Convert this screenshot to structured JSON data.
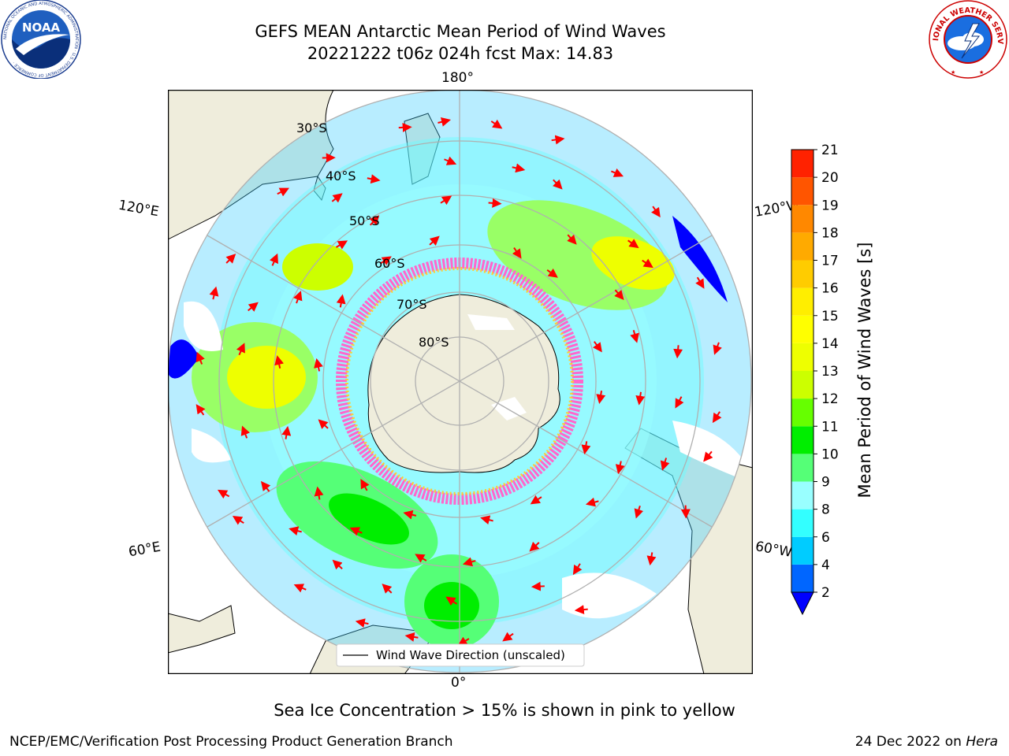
{
  "header": {
    "title_line1": "GEFS MEAN Antarctic Mean Period of Wind Waves",
    "title_line2": "20221222 t06z 024h fcst   Max: 14.83"
  },
  "logos": {
    "noaa": {
      "text": "NOAA",
      "ring_text": "NATIONAL OCEANIC AND ATMOSPHERIC ADMINISTRATION · U.S. DEPARTMENT OF COMMERCE ·",
      "icon": "noaa-logo"
    },
    "nws": {
      "ring_text": "NATIONAL WEATHER SERVICE",
      "icon": "nws-logo"
    }
  },
  "map": {
    "projection": "south-polar-stereographic",
    "lon_labels": {
      "top": "180°",
      "bottom": "0°",
      "upper_left": "120°E",
      "upper_right": "120°W",
      "lower_left": "60°E",
      "lower_right": "60°W"
    },
    "lat_labels": [
      "30°S",
      "40°S",
      "50°S",
      "60°S",
      "70°S",
      "80°S"
    ],
    "legend": "Wind Wave Direction (unscaled)",
    "colors": {
      "land": "#efeddc",
      "ice_pink": "#ff66cc",
      "ice_yellow": "#ffcc33",
      "arrows": "#ff0000",
      "grid": "#b0b0b0"
    }
  },
  "colorbar": {
    "label": "Mean Period of Wind Waves [s]",
    "ticks": [
      "2",
      "4",
      "6",
      "8",
      "9",
      "10",
      "11",
      "12",
      "13",
      "14",
      "15",
      "16",
      "17",
      "18",
      "19",
      "20",
      "21"
    ],
    "colors": [
      "#0066ff",
      "#00ccff",
      "#33ffff",
      "#99ffff",
      "#55ff77",
      "#00ee00",
      "#66ff00",
      "#ccff00",
      "#eeff00",
      "#ffff00",
      "#ffee00",
      "#ffcc00",
      "#ffaa00",
      "#ff8800",
      "#ff5500",
      "#ff2200"
    ],
    "underflow_color": "#0000ff",
    "extend": "min"
  },
  "annotations": {
    "sea_ice_note": "Sea Ice Concentration > 15% is shown in pink to yellow"
  },
  "footer": {
    "left": "NCEP/EMC/Verification Post Processing Product Generation Branch",
    "date": "24 Dec 2022 on",
    "machine": "Hera"
  }
}
